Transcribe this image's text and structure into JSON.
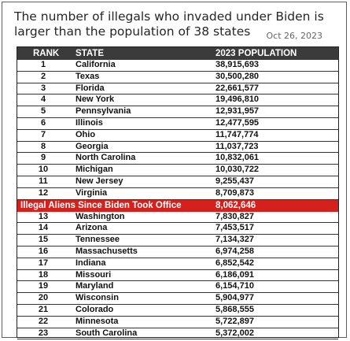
{
  "header": {
    "headline": "The number of illegals who invaded under Biden is larger than the population of 38 states",
    "date": "Oct 26, 2023"
  },
  "table": {
    "columns": {
      "rank": "RANK",
      "state": "STATE",
      "population": "2023 POPULATION"
    },
    "rows_top": [
      {
        "rank": "1",
        "state": "California",
        "population": "38,915,693"
      },
      {
        "rank": "2",
        "state": "Texas",
        "population": "30,500,280"
      },
      {
        "rank": "3",
        "state": "Florida",
        "population": "22,661,577"
      },
      {
        "rank": "4",
        "state": "New York",
        "population": "19,496,810"
      },
      {
        "rank": "5",
        "state": "Pennsylvania",
        "population": "12,931,957"
      },
      {
        "rank": "6",
        "state": "Illinois",
        "population": "12,477,595"
      },
      {
        "rank": "7",
        "state": "Ohio",
        "population": "11,747,774"
      },
      {
        "rank": "8",
        "state": "Georgia",
        "population": "11,037,723"
      },
      {
        "rank": "9",
        "state": "North Carolina",
        "population": "10,832,061"
      },
      {
        "rank": "10",
        "state": "Michigan",
        "population": "10,030,722"
      },
      {
        "rank": "11",
        "state": "New Jersey",
        "population": "9,255,437"
      },
      {
        "rank": "12",
        "state": "Virginia",
        "population": "8,709,873"
      }
    ],
    "highlight": {
      "label": "Illegal Aliens Since Biden Took Office",
      "value": "8,062,646",
      "color": "#d6201c"
    },
    "rows_bottom": [
      {
        "rank": "13",
        "state": "Washington",
        "population": "7,830,827"
      },
      {
        "rank": "14",
        "state": "Arizona",
        "population": "7,453,517"
      },
      {
        "rank": "15",
        "state": "Tennessee",
        "population": "7,134,327"
      },
      {
        "rank": "16",
        "state": "Massachusetts",
        "population": "6,974,258"
      },
      {
        "rank": "17",
        "state": "Indiana",
        "population": "6,852,542"
      },
      {
        "rank": "18",
        "state": "Missouri",
        "population": "6,186,091"
      },
      {
        "rank": "19",
        "state": "Maryland",
        "population": "6,154,710"
      },
      {
        "rank": "20",
        "state": "Wisconsin",
        "population": "5,904,977"
      },
      {
        "rank": "21",
        "state": "Colorado",
        "population": "5,868,555"
      },
      {
        "rank": "22",
        "state": "Minnesota",
        "population": "5,722,897"
      },
      {
        "rank": "23",
        "state": "South Carolina",
        "population": "5,372,002"
      }
    ]
  }
}
